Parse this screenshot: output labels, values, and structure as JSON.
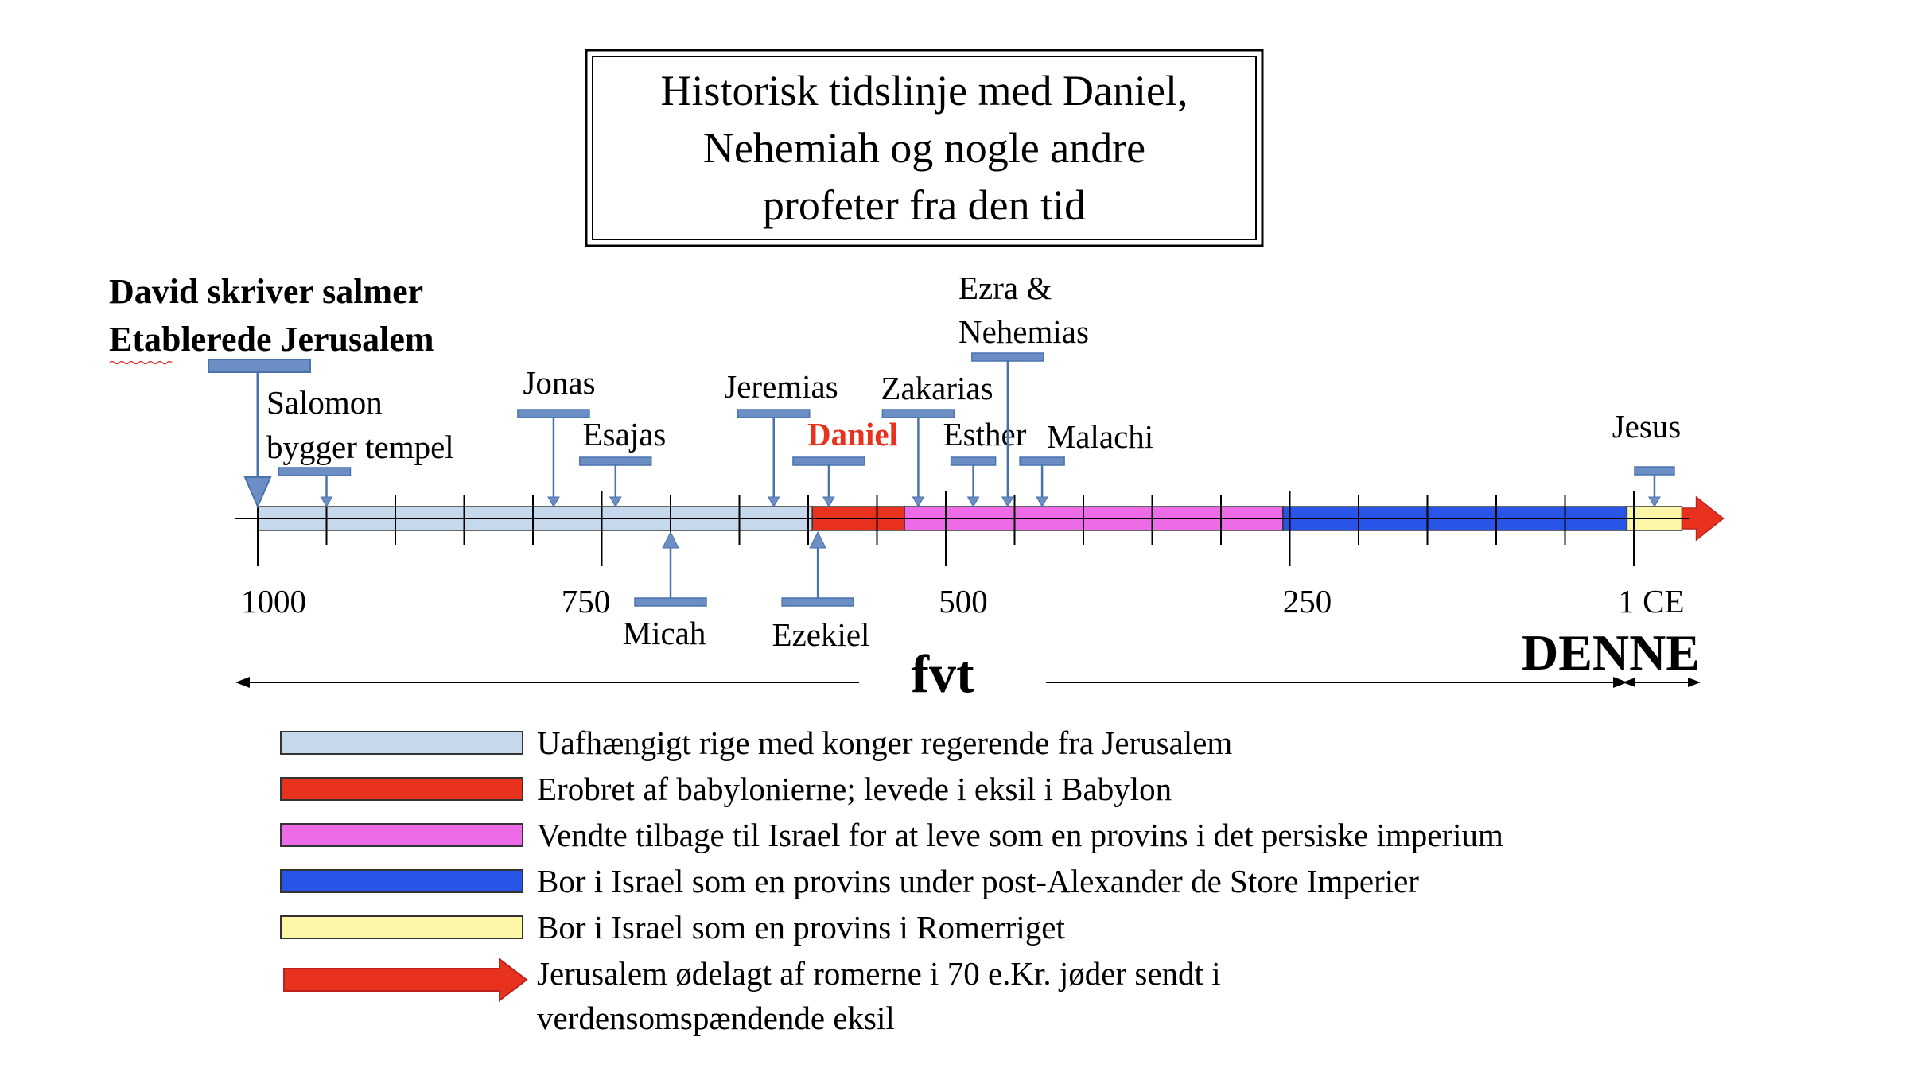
{
  "title_lines": [
    "Historisk tidslinje med Daniel,",
    "Nehemiah og nogle andre",
    "profeter fra den tid"
  ],
  "heading_lines": [
    "David skriver salmer",
    "Etablerede Jerusalem"
  ],
  "axis": {
    "ticks": [
      {
        "value": 1000,
        "label": "1000"
      },
      {
        "value": 750,
        "label": "750"
      },
      {
        "value": 500,
        "label": "500"
      },
      {
        "value": 250,
        "label": "250"
      },
      {
        "value": 0,
        "label": "1 CE"
      }
    ],
    "minor_step": 50,
    "bce_label": "fvt",
    "ce_label": "DENNE"
  },
  "periods": [
    {
      "from": 1000,
      "to": 597,
      "color": "#c6d9ec",
      "key": "independent"
    },
    {
      "from": 597,
      "to": 530,
      "color": "#e8321e",
      "key": "babylon"
    },
    {
      "from": 530,
      "to": 255,
      "color": "#ee6be8",
      "key": "persia"
    },
    {
      "from": 255,
      "to": 5,
      "color": "#2854e8",
      "key": "alexander"
    },
    {
      "from": 5,
      "to": -35,
      "color": "#fbf7a6",
      "key": "rome"
    }
  ],
  "events": [
    {
      "id": "david",
      "year": 1000,
      "side": "top-big"
    },
    {
      "id": "salomon",
      "lines": [
        "Salomon",
        "bygger tempel"
      ],
      "year": 950,
      "side": "top"
    },
    {
      "id": "jonas",
      "lines": [
        "Jonas"
      ],
      "year": 785,
      "side": "top"
    },
    {
      "id": "esajas",
      "lines": [
        "Esajas"
      ],
      "year": 740,
      "side": "top"
    },
    {
      "id": "jeremias",
      "lines": [
        "Jeremias"
      ],
      "year": 625,
      "side": "top"
    },
    {
      "id": "daniel",
      "lines": [
        "Daniel"
      ],
      "year": 585,
      "side": "top",
      "color": "#e8321e"
    },
    {
      "id": "zakarias",
      "lines": [
        "Zakarias"
      ],
      "year": 520,
      "side": "top"
    },
    {
      "id": "esther",
      "lines": [
        "Esther"
      ],
      "year": 480,
      "side": "top"
    },
    {
      "id": "ezra",
      "lines": [
        "Ezra &",
        "Nehemias"
      ],
      "year": 455,
      "side": "top"
    },
    {
      "id": "malachi",
      "lines": [
        "Malachi"
      ],
      "year": 430,
      "side": "top"
    },
    {
      "id": "jesus",
      "lines": [
        "Jesus"
      ],
      "year": -15,
      "side": "top"
    },
    {
      "id": "micah",
      "lines": [
        "Micah"
      ],
      "year": 700,
      "side": "bottom"
    },
    {
      "id": "ezekiel",
      "lines": [
        "Ezekiel"
      ],
      "year": 593,
      "side": "bottom"
    }
  ],
  "legend": [
    {
      "color": "#c6d9ec",
      "text": [
        "Uafhængigt rige med konger regerende fra Jerusalem"
      ]
    },
    {
      "color": "#e8321e",
      "text": [
        "Erobret af babylonierne; levede i eksil i Babylon"
      ]
    },
    {
      "color": "#ee6be8",
      "text": [
        "Vendte tilbage til Israel for at leve som en provins i det persiske imperium"
      ]
    },
    {
      "color": "#2854e8",
      "text": [
        "Bor i Israel som en provins under post-Alexander de Store Imperier"
      ]
    },
    {
      "color": "#fbf7a6",
      "text": [
        "Bor i Israel som en provins i Romerriget"
      ]
    },
    {
      "color": "#e8321e",
      "shape": "arrow",
      "text": [
        "Jerusalem ødelagt af romerne i 70 e.Kr. jøder sendt i",
        "verdensomspændende eksil"
      ]
    }
  ],
  "colors": {
    "marker": "#6b8fc4",
    "marker_stroke": "#4a72ad",
    "axis": "#000000",
    "end_arrow": "#e8321e"
  }
}
